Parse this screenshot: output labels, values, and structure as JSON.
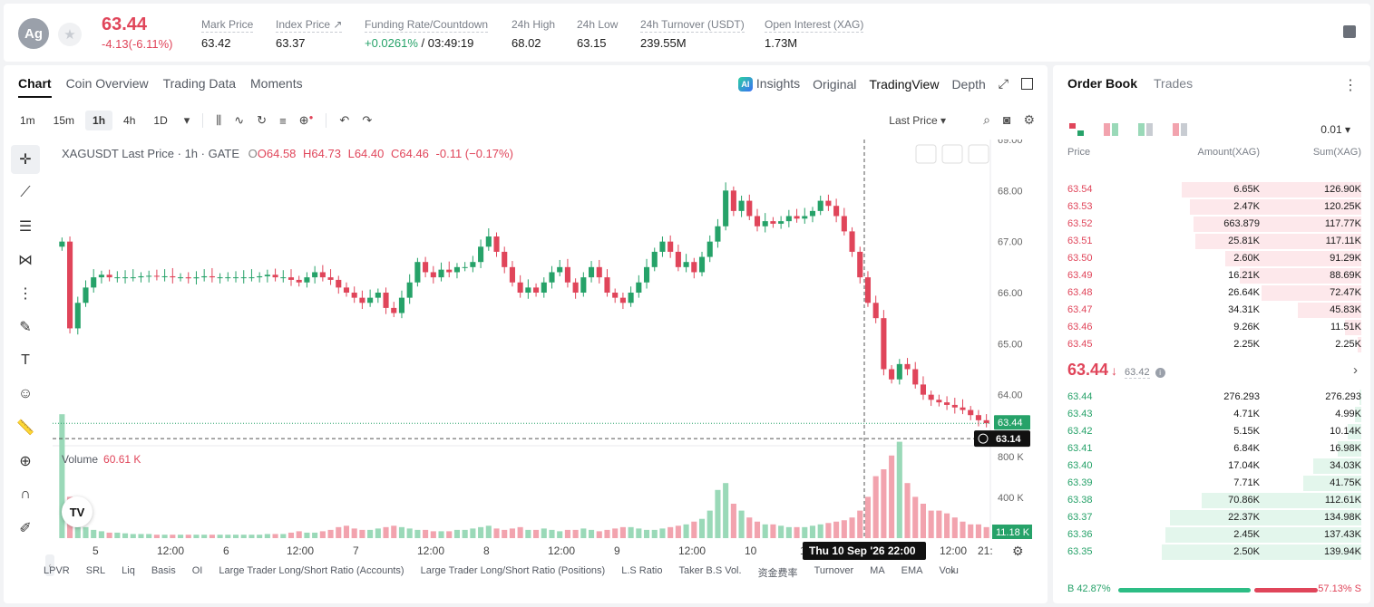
{
  "header": {
    "coin_badge": "Ag",
    "price": "63.44",
    "change": "-4.13(-6.11%)",
    "stats": [
      {
        "label": "Mark Price",
        "value": "63.42"
      },
      {
        "label": "Index Price ↗",
        "value": "63.37"
      },
      {
        "label": "Funding Rate/Countdown",
        "value_green": "+0.0261%",
        "value": " / 03:49:19"
      },
      {
        "label": "24h High",
        "value": "68.02"
      },
      {
        "label": "24h Low",
        "value": "63.15"
      },
      {
        "label": "24h Turnover (USDT)",
        "value": "239.55M"
      },
      {
        "label": "Open Interest (XAG)",
        "value": "1.73M"
      }
    ]
  },
  "chart_tabs": [
    "Chart",
    "Coin Overview",
    "Trading Data",
    "Moments"
  ],
  "chart_views": {
    "insights": "Insights",
    "original": "Original",
    "tradingview": "TradingView",
    "depth": "Depth"
  },
  "timeframes": [
    "1m",
    "15m",
    "1h",
    "4h",
    "1D"
  ],
  "active_timeframe": "1h",
  "last_price_select": "Last Price",
  "chart_title": {
    "symbol": "XAGUSDT Last Price · 1h · GATE",
    "o": "O64.58",
    "h": "H64.73",
    "l": "L64.40",
    "c": "C64.46",
    "chg": "-0.11 (−0.17%)"
  },
  "volume_label": {
    "name": "Volume",
    "value": "60.61 K"
  },
  "price_axis": [
    "69.00",
    "68.00",
    "67.00",
    "66.00",
    "65.00",
    "64.00"
  ],
  "price_badges": {
    "last": "63.44",
    "cross": "63.14"
  },
  "volume_axis": [
    "800 K",
    "400 K"
  ],
  "volume_badge": "11.18 K",
  "time_axis": [
    "5",
    "12:00",
    "6",
    "12:00",
    "7",
    "12:00",
    "8",
    "12:00",
    "9",
    "12:00",
    "10",
    "1",
    "12:00",
    "21:"
  ],
  "crosshair_time": "Thu 10 Sep '26   22:00",
  "indicators": [
    "LPVR",
    "SRL",
    "Liq",
    "Basis",
    "OI",
    "Large Trader Long/Short Ratio (Accounts)",
    "Large Trader Long/Short Ratio (Positions)",
    "L.S Ratio",
    "Taker B.S Vol.",
    "资金费率",
    "Turnover",
    "MA",
    "EMA",
    "Volu"
  ],
  "chart_data": {
    "type": "candlestick",
    "title": "XAGUSDT Last Price · 1h · GATE",
    "ylim": [
      63.0,
      69.0
    ],
    "vol_max": 1000,
    "series_close": [
      67.0,
      65.3,
      65.8,
      66.1,
      66.3,
      66.35,
      66.3,
      66.3,
      66.3,
      66.3,
      66.32,
      66.33,
      66.32,
      66.32,
      66.3,
      66.3,
      66.28,
      66.3,
      66.32,
      66.3,
      66.3,
      66.3,
      66.3,
      66.3,
      66.3,
      66.32,
      66.35,
      66.3,
      66.3,
      66.25,
      66.2,
      66.3,
      66.4,
      66.3,
      66.25,
      66.1,
      66.0,
      65.9,
      65.8,
      65.9,
      66.0,
      65.7,
      65.6,
      65.9,
      66.2,
      66.6,
      66.4,
      66.3,
      66.45,
      66.4,
      66.5,
      66.5,
      66.6,
      66.9,
      67.1,
      66.8,
      66.5,
      66.2,
      66.0,
      66.1,
      66.0,
      66.2,
      66.4,
      66.5,
      66.2,
      66.0,
      66.3,
      66.5,
      66.3,
      66.0,
      65.9,
      65.8,
      66.0,
      66.2,
      66.5,
      66.8,
      67.0,
      66.8,
      66.5,
      66.6,
      66.4,
      66.7,
      67.0,
      67.3,
      68.0,
      67.6,
      67.8,
      67.5,
      67.3,
      67.4,
      67.35,
      67.4,
      67.5,
      67.45,
      67.5,
      67.6,
      67.8,
      67.7,
      67.5,
      67.2,
      66.8,
      66.3,
      65.8,
      65.5,
      64.5,
      64.3,
      64.6,
      64.5,
      64.2,
      64.0,
      63.9,
      63.85,
      63.8,
      63.75,
      63.7,
      63.6,
      63.5,
      63.44
    ],
    "volume": [
      900,
      300,
      120,
      80,
      60,
      50,
      40,
      40,
      35,
      30,
      30,
      30,
      25,
      25,
      25,
      25,
      25,
      25,
      25,
      25,
      25,
      25,
      25,
      25,
      25,
      25,
      30,
      30,
      30,
      40,
      50,
      40,
      40,
      50,
      60,
      80,
      90,
      70,
      60,
      60,
      70,
      80,
      90,
      80,
      70,
      60,
      60,
      50,
      50,
      50,
      60,
      60,
      70,
      80,
      90,
      70,
      60,
      70,
      80,
      60,
      60,
      70,
      60,
      50,
      60,
      60,
      70,
      60,
      50,
      60,
      70,
      80,
      80,
      70,
      60,
      60,
      70,
      80,
      90,
      100,
      120,
      140,
      200,
      350,
      400,
      250,
      200,
      150,
      120,
      100,
      100,
      90,
      80,
      80,
      80,
      90,
      100,
      110,
      120,
      130,
      150,
      200,
      300,
      450,
      500,
      600,
      700,
      400,
      300,
      250,
      200,
      200,
      180,
      150,
      120,
      100,
      100,
      80,
      60,
      60
    ]
  },
  "order_book": {
    "tabs": [
      "Order Book",
      "Trades"
    ],
    "precision": "0.01",
    "headers": {
      "price": "Price",
      "amount": "Amount(XAG)",
      "sum": "Sum(XAG)"
    },
    "asks": [
      {
        "price": "63.54",
        "amount": "6.65K",
        "sum": "126.90K",
        "depth": 0.9
      },
      {
        "price": "63.53",
        "amount": "2.47K",
        "sum": "120.25K",
        "depth": 0.86
      },
      {
        "price": "63.52",
        "amount": "663.879",
        "sum": "117.77K",
        "depth": 0.84
      },
      {
        "price": "63.51",
        "amount": "25.81K",
        "sum": "117.11K",
        "depth": 0.83
      },
      {
        "price": "63.50",
        "amount": "2.60K",
        "sum": "91.29K",
        "depth": 0.68
      },
      {
        "price": "63.49",
        "amount": "16.21K",
        "sum": "88.69K",
        "depth": 0.61
      },
      {
        "price": "63.48",
        "amount": "26.64K",
        "sum": "72.47K",
        "depth": 0.5
      },
      {
        "price": "63.47",
        "amount": "34.31K",
        "sum": "45.83K",
        "depth": 0.32
      },
      {
        "price": "63.46",
        "amount": "9.26K",
        "sum": "11.51K",
        "depth": 0.08
      },
      {
        "price": "63.45",
        "amount": "2.25K",
        "sum": "2.25K",
        "depth": 0.02
      }
    ],
    "mid": {
      "price": "63.44",
      "arrow": "↓",
      "mark": "63.42"
    },
    "bids": [
      {
        "price": "63.44",
        "amount": "276.293",
        "sum": "276.293",
        "depth": 0.01
      },
      {
        "price": "63.43",
        "amount": "4.71K",
        "sum": "4.99K",
        "depth": 0.03
      },
      {
        "price": "63.42",
        "amount": "5.15K",
        "sum": "10.14K",
        "depth": 0.07
      },
      {
        "price": "63.41",
        "amount": "6.84K",
        "sum": "16.98K",
        "depth": 0.12
      },
      {
        "price": "63.40",
        "amount": "17.04K",
        "sum": "34.03K",
        "depth": 0.24
      },
      {
        "price": "63.39",
        "amount": "7.71K",
        "sum": "41.75K",
        "depth": 0.29
      },
      {
        "price": "63.38",
        "amount": "70.86K",
        "sum": "112.61K",
        "depth": 0.8
      },
      {
        "price": "63.37",
        "amount": "22.37K",
        "sum": "134.98K",
        "depth": 0.96
      },
      {
        "price": "63.36",
        "amount": "2.45K",
        "sum": "137.43K",
        "depth": 0.98
      },
      {
        "price": "63.35",
        "amount": "2.50K",
        "sum": "139.94K",
        "depth": 1.0
      }
    ],
    "ratio": {
      "buy": "B 42.87%",
      "sell": "57.13% S"
    }
  },
  "colors": {
    "up": "#26a269",
    "down": "#e0455a",
    "up_vol": "#9ad9b8",
    "down_vol": "#f2a3ae"
  }
}
